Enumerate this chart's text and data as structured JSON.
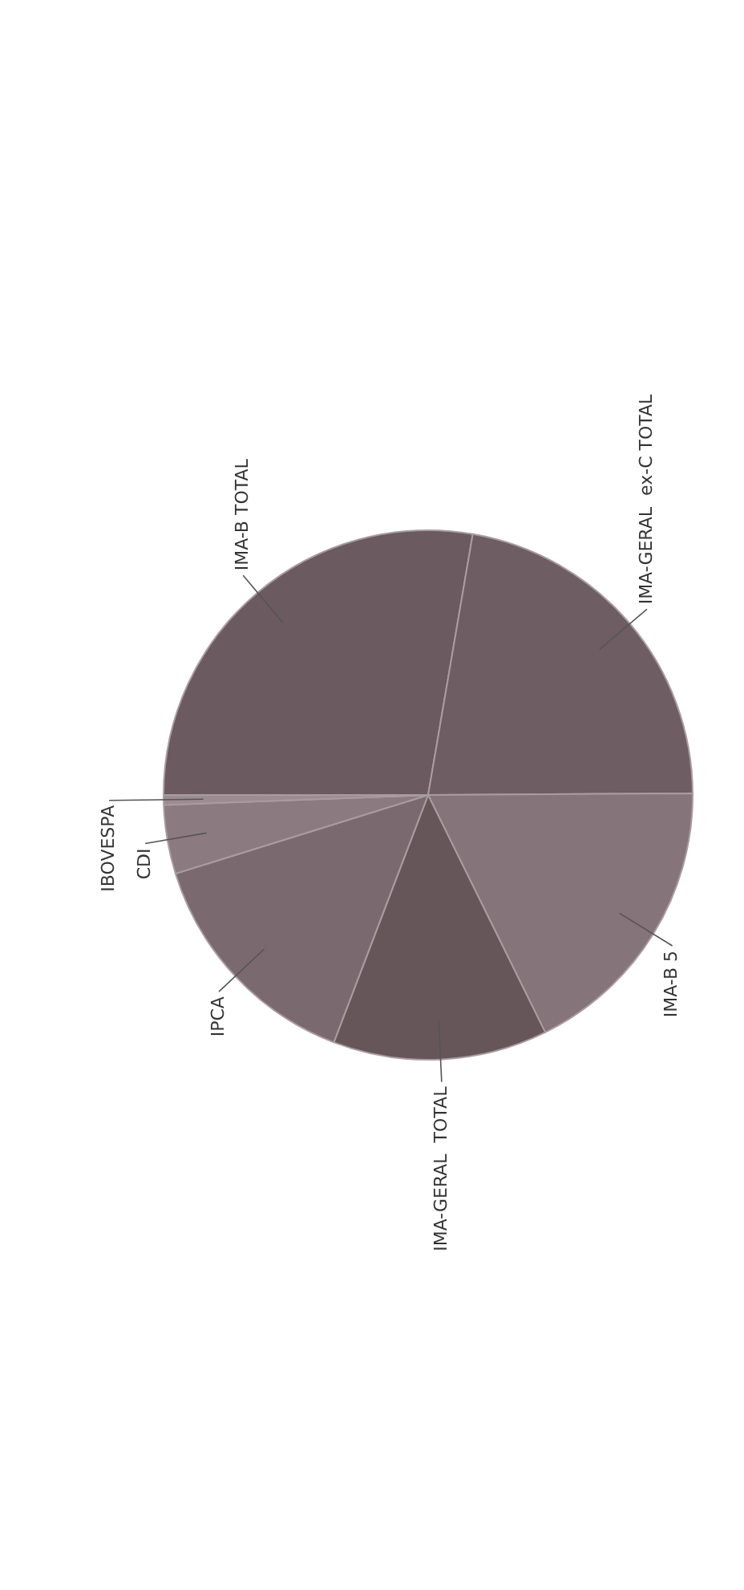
{
  "chart_data": {
    "type": "pie",
    "categories": [
      "IMA-B TOTAL",
      "IMA-GERAL  ex-C TOTAL",
      "IMA-B 5",
      "IMA-GERAL  TOTAL",
      "IPCA",
      "CDI",
      "IBOVESPA"
    ],
    "values": [
      27.7,
      22.2,
      17.8,
      13.1,
      14.4,
      4.2,
      0.6
    ],
    "colors": [
      "#6b5a60",
      "#6e5d63",
      "#857479",
      "#675659",
      "#7a6a6f",
      "#8b7b80",
      "#9c8c91"
    ]
  }
}
